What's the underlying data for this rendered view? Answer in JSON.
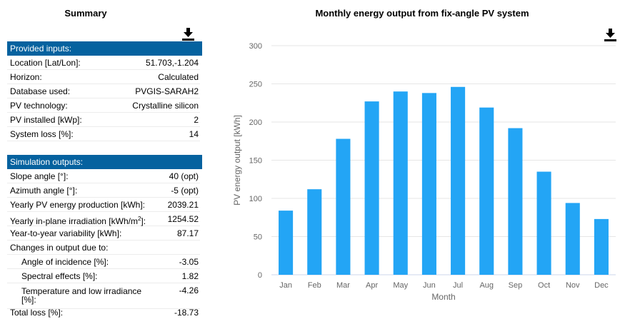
{
  "summary": {
    "title": "Summary",
    "download_icon": "download-icon",
    "inputs": {
      "header": "Provided inputs:",
      "rows": [
        {
          "label": "Location [Lat/Lon]:",
          "value": "51.703,-1.204"
        },
        {
          "label": "Horizon:",
          "value": "Calculated"
        },
        {
          "label": "Database used:",
          "value": "PVGIS-SARAH2"
        },
        {
          "label": "PV technology:",
          "value": "Crystalline silicon"
        },
        {
          "label": "PV installed [kWp]:",
          "value": "2"
        },
        {
          "label": "System loss [%]:",
          "value": "14"
        }
      ]
    },
    "outputs": {
      "header": "Simulation outputs:",
      "slope_label": "Slope angle [°]:",
      "slope_value": "40 (opt)",
      "azimuth_label": "Azimuth angle [°]:",
      "azimuth_value": "-5 (opt)",
      "yearly_prod_label": "Yearly PV energy production [kWh]:",
      "yearly_prod_value": "2039.21",
      "irradiation_label_pre": "Yearly in-plane irradiation [kWh/m",
      "irradiation_label_sup": "2",
      "irradiation_label_post": "]:",
      "irradiation_value": "1254.52",
      "variability_label": "Year-to-year variability [kWh]:",
      "variability_value": "87.17",
      "changes_label": "Changes in output due to:",
      "aoi_label": "Angle of incidence [%]:",
      "aoi_value": "-3.05",
      "spectral_label": "Spectral effects [%]:",
      "spectral_value": "1.82",
      "temperature_label": "Temperature and low irradiance [%]:",
      "temperature_value": "-4.26",
      "total_loss_label": "Total loss [%]:",
      "total_loss_value": "-18.73"
    }
  },
  "chart": {
    "title": "Monthly energy output from fix-angle PV system",
    "download_icon": "download-icon"
  },
  "chart_data": {
    "type": "bar",
    "title": "Monthly energy output from fix-angle PV system",
    "xlabel": "Month",
    "ylabel": "PV energy output [kWh]",
    "categories": [
      "Jan",
      "Feb",
      "Mar",
      "Apr",
      "May",
      "Jun",
      "Jul",
      "Aug",
      "Sep",
      "Oct",
      "Nov",
      "Dec"
    ],
    "values": [
      84,
      112,
      178,
      227,
      240,
      238,
      246,
      219,
      192,
      135,
      94,
      73
    ],
    "ylim": [
      0,
      300
    ],
    "yticks": [
      0,
      50,
      100,
      150,
      200,
      250,
      300
    ],
    "grid": true,
    "bar_color": "#23a5f5"
  }
}
